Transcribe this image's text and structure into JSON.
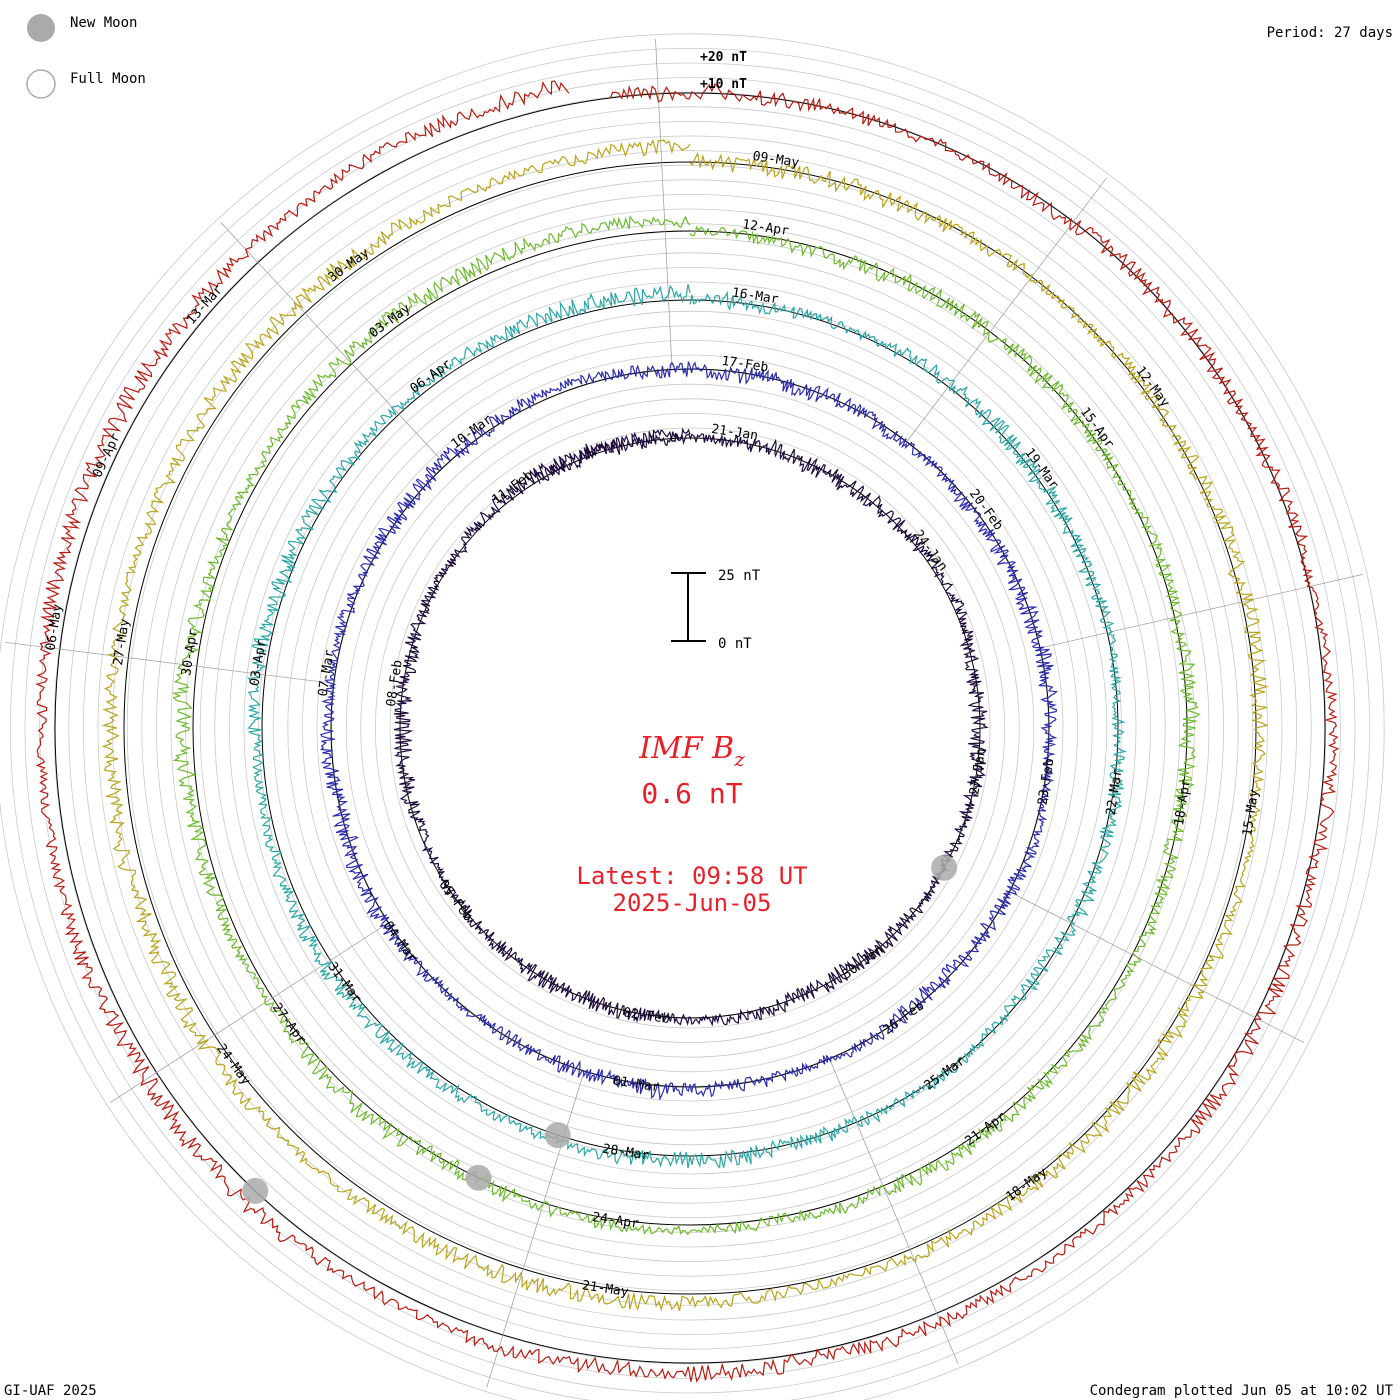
{
  "legend": {
    "new_moon": "New Moon",
    "full_moon": "Full Moon"
  },
  "header": {
    "period": "Period: 27 days"
  },
  "footer": {
    "left": "GI-UAF 2025",
    "right": "Condegram plotted Jun 05 at 10:02 UT"
  },
  "center": {
    "title_main": "IMF B",
    "title_sub": "z",
    "current_value": "0.6 nT",
    "latest_line1": "Latest: 09:58 UT",
    "latest_line2": "2025-Jun-05"
  },
  "scale": {
    "top_label": "25 nT",
    "bottom_label": "0 nT"
  },
  "ring_labels": {
    "plus20": "+20 nT",
    "plus10": "+10 nT"
  },
  "colors": {
    "title": "#e8202a",
    "moon": "#aaaaaa",
    "grid": "#bbbbbb",
    "zero": "#000000",
    "spokes": "#999999"
  },
  "chart_data": {
    "type": "condegram-spiral",
    "quantity": "IMF Bz",
    "unit": "nT",
    "period_days": 27,
    "rotations": [
      {
        "index": 0,
        "color": "#1e0a3c",
        "date_labels": [
          "21-Jan",
          "24-Jan",
          "27-Jan",
          "30-Jan",
          "02-Feb",
          "05-Feb",
          "08-Feb",
          "11-Feb"
        ]
      },
      {
        "index": 1,
        "color": "#2a2ab0",
        "date_labels": [
          "17-Feb",
          "20-Feb",
          "23-Feb",
          "26-Feb",
          "01-Mar",
          "04-Mar",
          "07-Mar",
          "10-Mar"
        ]
      },
      {
        "index": 2,
        "color": "#2aa6a6",
        "date_labels": [
          "16-Mar",
          "19-Mar",
          "22-Mar",
          "25-Mar",
          "28-Mar",
          "31-Mar",
          "03-Apr",
          "06-Apr"
        ]
      },
      {
        "index": 3,
        "color": "#6cba2c",
        "date_labels": [
          "12-Apr",
          "15-Apr",
          "18-Apr",
          "21-Apr",
          "24-Apr",
          "27-Apr",
          "30-Apr",
          "03-May"
        ]
      },
      {
        "index": 4,
        "color": "#b8a41a",
        "date_labels": [
          "09-May",
          "12-May",
          "15-May",
          "18-May",
          "21-May",
          "24-May",
          "27-May",
          "30-May"
        ]
      },
      {
        "index": 5,
        "color": "#b81a10",
        "date_labels": [
          "06-May",
          "09-Apr",
          "13-Mar"
        ]
      }
    ],
    "moon_phases": [
      {
        "type": "new",
        "label": "New Moon"
      },
      {
        "type": "full",
        "label": "Full Moon"
      }
    ],
    "grid": true
  }
}
